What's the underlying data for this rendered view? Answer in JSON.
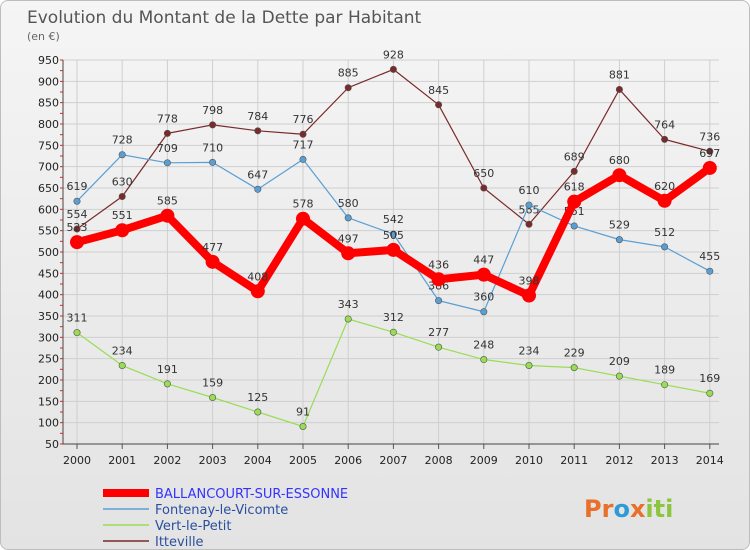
{
  "chart_data": {
    "type": "line",
    "title": "Evolution du Montant de la Dette par Habitant",
    "subtitle": "(en €)",
    "x": [
      "2000",
      "2001",
      "2002",
      "2003",
      "2004",
      "2005",
      "2006",
      "2007",
      "2008",
      "2009",
      "2010",
      "2011",
      "2012",
      "2013",
      "2014"
    ],
    "ylim": [
      50,
      950
    ],
    "yticks": [
      50,
      100,
      150,
      200,
      250,
      300,
      350,
      400,
      450,
      500,
      550,
      600,
      650,
      700,
      750,
      800,
      850,
      900,
      950
    ],
    "grid": true,
    "legend_position": "bottom-left",
    "series": [
      {
        "name": "BALLANCOURT-SUR-ESSONNE",
        "color": "#ff0000",
        "text_color": "#3333ff",
        "values": [
          523,
          551,
          585,
          477,
          408,
          578,
          497,
          505,
          436,
          447,
          398,
          618,
          680,
          620,
          697
        ],
        "labels": [
          "523",
          "551",
          "585",
          "477",
          "408",
          "578",
          "497",
          "505",
          "436",
          "447",
          "398",
          "618",
          "680",
          "620",
          "697"
        ]
      },
      {
        "name": "Fontenay-le-Vicomte",
        "color": "#5a9fd4",
        "text_color": "#2a4f9f",
        "values": [
          619,
          728,
          709,
          710,
          647,
          717,
          580,
          542,
          386,
          360,
          610,
          561,
          529,
          512,
          455
        ],
        "labels": [
          "619",
          "728",
          "709",
          "710",
          "647",
          "717",
          "580",
          "542",
          "386",
          "360",
          "610",
          "561",
          "529",
          "512",
          "455"
        ]
      },
      {
        "name": "Vert-le-Petit",
        "color": "#99dd55",
        "text_color": "#2a4f9f",
        "values": [
          311,
          234,
          191,
          159,
          125,
          91,
          343,
          312,
          277,
          248,
          234,
          229,
          209,
          189,
          169
        ],
        "labels": [
          "311",
          "234",
          "191",
          "159",
          "125",
          "91",
          "343",
          "312",
          "277",
          "248",
          "234",
          "229",
          "209",
          "189",
          "169"
        ]
      },
      {
        "name": "Itteville",
        "color": "#7a2a2a",
        "text_color": "#2a4f9f",
        "values": [
          554,
          630,
          778,
          798,
          784,
          776,
          885,
          928,
          845,
          650,
          565,
          689,
          881,
          764,
          736
        ],
        "labels": [
          "554",
          "630",
          "778",
          "798",
          "784",
          "776",
          "885",
          "928",
          "845",
          "650",
          "565",
          "689",
          "881",
          "764",
          "736"
        ]
      }
    ]
  },
  "logo": {
    "text": "Proxiti",
    "colors": [
      "#e8702a",
      "#2e9ad8",
      "#8cc63f"
    ]
  }
}
